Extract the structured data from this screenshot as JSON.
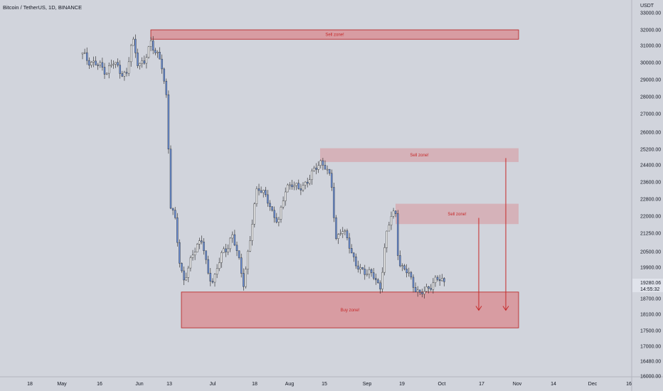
{
  "chart_data": {
    "type": "candlestick",
    "title": "Bitcoin / TetherUS, 1D, BINANCE",
    "currency": "USDT",
    "price_tag": {
      "price": "19280.06",
      "countdown": "14:55:32"
    },
    "x_ticks": [
      "18",
      "May",
      "16",
      "Jun",
      "13",
      "Jul",
      "18",
      "Aug",
      "15",
      "Sep",
      "19",
      "Oct",
      "17",
      "Nov",
      "14",
      "Dec",
      "16"
    ],
    "y_ticks": [
      "33000.00",
      "32000.00",
      "31000.00",
      "30000.00",
      "29000.00",
      "28000.00",
      "27000.00",
      "26000.00",
      "25200.00",
      "24400.00",
      "23600.00",
      "22800.00",
      "22000.00",
      "21250.00",
      "20500.00",
      "19900.00",
      "18700.00",
      "18100.00",
      "17500.00",
      "17000.00",
      "16480.00",
      "16000.00"
    ],
    "zones": [
      {
        "label": "Sell zone!",
        "type": "sell",
        "low": 31400,
        "high": 32000
      },
      {
        "label": "Sell zone!",
        "type": "sell",
        "low": 24550,
        "high": 25250
      },
      {
        "label": "Sell zone!",
        "type": "sell",
        "low": 21650,
        "high": 22580
      },
      {
        "label": "Buy zone!",
        "type": "buy",
        "low": 17600,
        "high": 18950
      }
    ],
    "arrows": [
      {
        "from": 21920,
        "to": 18250
      },
      {
        "from": 24750,
        "to": 18250
      }
    ],
    "candle_color_up": "#f8f8f8",
    "candle_color_down": "#6a8fd8",
    "zone_color": "#d98a8f",
    "arrow_color": "#c62828"
  }
}
